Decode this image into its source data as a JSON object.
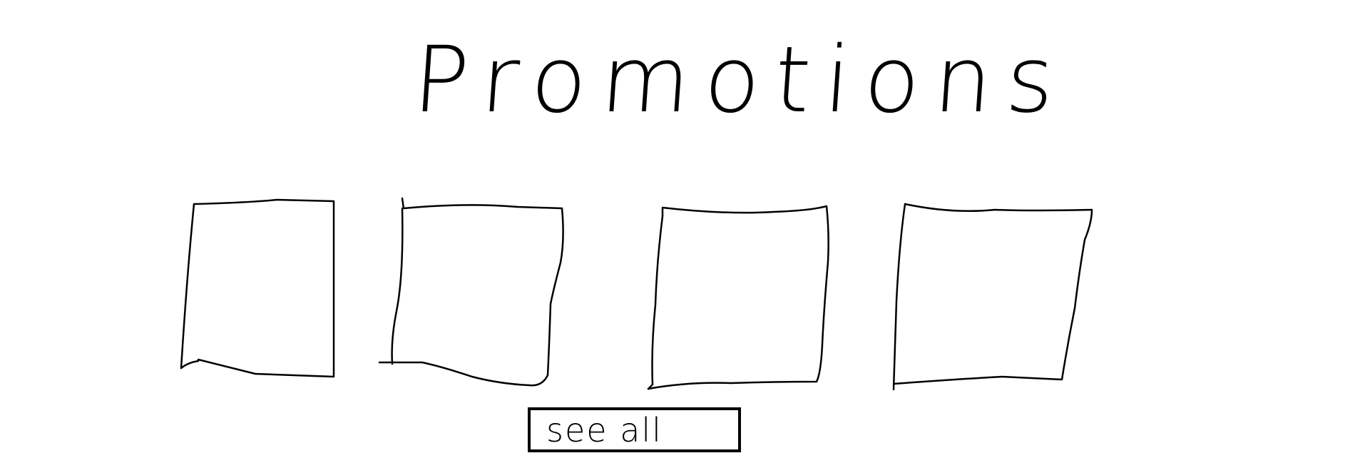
{
  "page": {
    "title": "Promotions"
  },
  "promotions": {
    "items": [
      {
        "label": ""
      },
      {
        "label": ""
      },
      {
        "label": ""
      },
      {
        "label": ""
      }
    ]
  },
  "actions": {
    "see_all_label": "see all"
  },
  "colors": {
    "ink": "#000000",
    "background": "#ffffff"
  }
}
